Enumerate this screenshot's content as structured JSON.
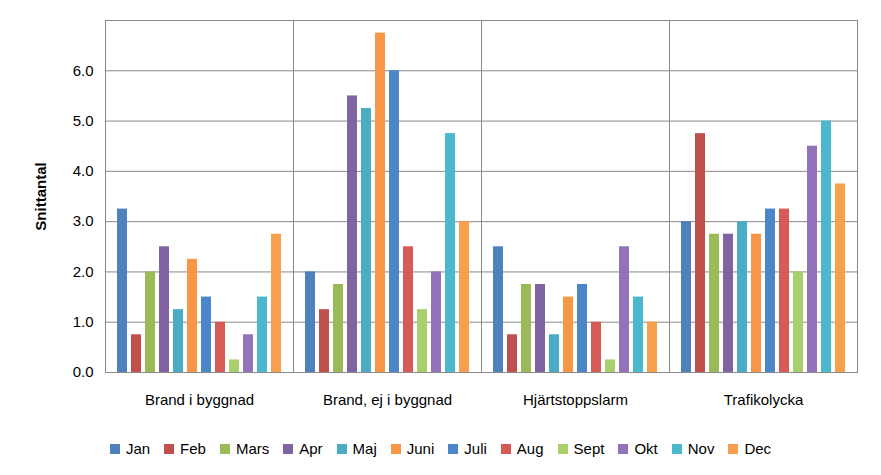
{
  "chart_data": {
    "type": "bar",
    "y_label": "Snittantal",
    "categories": [
      "Brand i byggnad",
      "Brand, ej i byggnad",
      "Hjärtstoppslarm",
      "Trafikolycka"
    ],
    "series": [
      {
        "name": "Jan",
        "color": "#4F81BD",
        "values": [
          3.25,
          2,
          2.5,
          3
        ]
      },
      {
        "name": "Feb",
        "color": "#C0504D",
        "values": [
          0.75,
          1.25,
          0.75,
          4.75
        ]
      },
      {
        "name": "Mars",
        "color": "#9BBB59",
        "values": [
          2,
          1.75,
          1.75,
          2.75
        ]
      },
      {
        "name": "Apr",
        "color": "#8064A2",
        "values": [
          2.5,
          5.5,
          1.75,
          2.75
        ]
      },
      {
        "name": "Maj",
        "color": "#4BACC6",
        "values": [
          1.25,
          5.25,
          0.75,
          3
        ]
      },
      {
        "name": "Juni",
        "color": "#F79646",
        "values": [
          2.25,
          6.75,
          1.5,
          2.75
        ]
      },
      {
        "name": "Juli",
        "color": "#4A86C8",
        "values": [
          1.5,
          6,
          1.75,
          3.25
        ]
      },
      {
        "name": "Aug",
        "color": "#D65A56",
        "values": [
          1,
          2.5,
          1,
          3.25
        ]
      },
      {
        "name": "Sept",
        "color": "#A8CF6B",
        "values": [
          0.25,
          1.25,
          0.25,
          2
        ]
      },
      {
        "name": "Okt",
        "color": "#9272B8",
        "values": [
          0.75,
          2,
          2.5,
          4.5
        ]
      },
      {
        "name": "Nov",
        "color": "#4BB8CE",
        "values": [
          1.5,
          4.75,
          1.5,
          5
        ]
      },
      {
        "name": "Dec",
        "color": "#F89F4E",
        "values": [
          2.75,
          3,
          1,
          3.75
        ]
      }
    ],
    "ylim": [
      0,
      7
    ],
    "yticks": [
      0,
      1,
      2,
      3,
      4,
      5,
      6
    ],
    "grid": true,
    "legend": "bottom"
  }
}
